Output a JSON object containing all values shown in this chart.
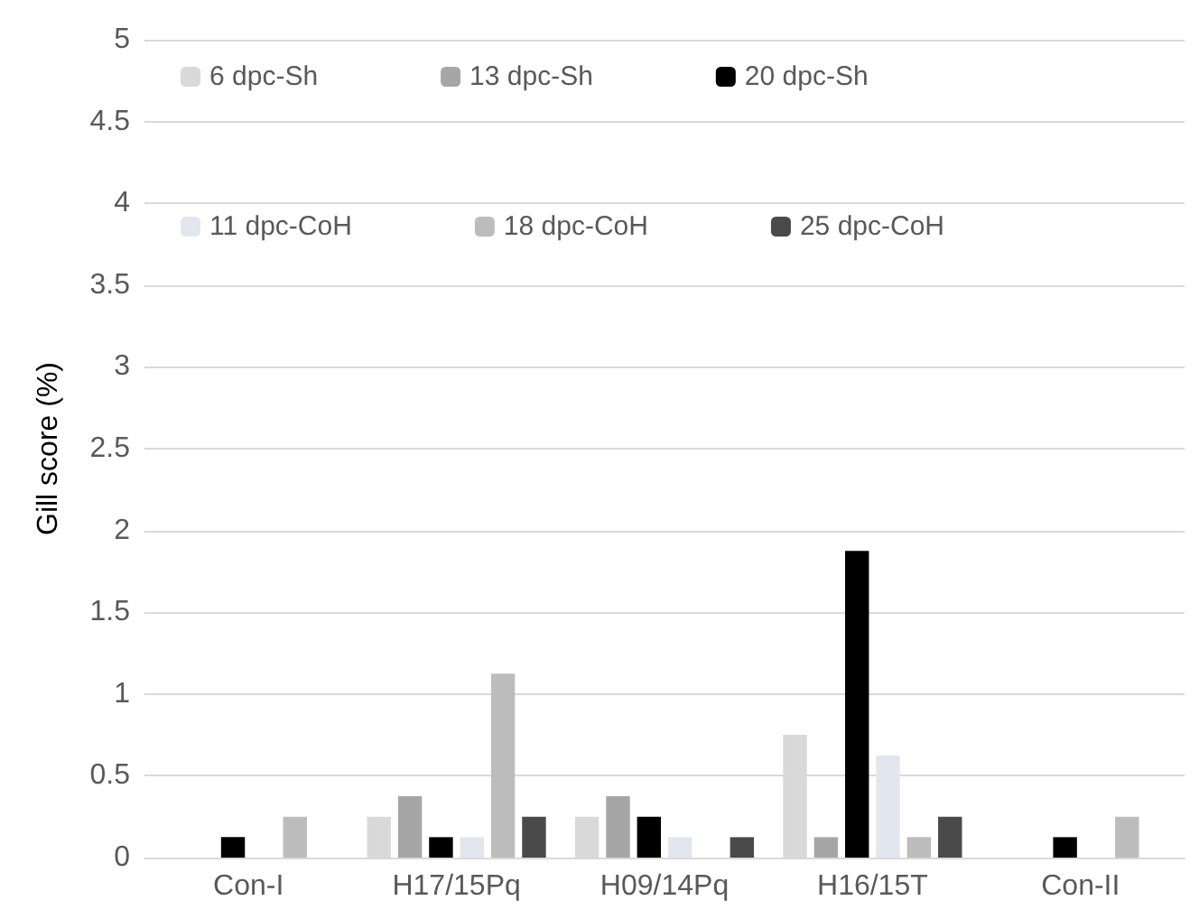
{
  "chart_data": {
    "type": "bar",
    "ylabel": "Gill score (%)",
    "categories": [
      "Con-I",
      "H17/15Pq",
      "H09/14Pq",
      "H16/15T",
      "Con-II"
    ],
    "series": [
      {
        "name": "6 dpc-Sh",
        "color": "#d9d9d9",
        "values": [
          null,
          0.25,
          0.25,
          0.75,
          null
        ]
      },
      {
        "name": "13 dpc-Sh",
        "color": "#a6a6a6",
        "values": [
          null,
          0.375,
          0.375,
          0.125,
          null
        ]
      },
      {
        "name": "20 dpc-Sh",
        "color": "#000000",
        "values": [
          0.125,
          0.125,
          0.25,
          1.875,
          0.125
        ]
      },
      {
        "name": "11 dpc-CoH",
        "color": "#e2e7ef",
        "values": [
          null,
          0.125,
          0.125,
          0.625,
          null
        ]
      },
      {
        "name": "18 dpc-CoH",
        "color": "#bcbcbc",
        "values": [
          0.25,
          1.125,
          null,
          0.125,
          0.25
        ]
      },
      {
        "name": "25 dpc-CoH",
        "color": "#4a4a4a",
        "values": [
          null,
          0.25,
          0.125,
          0.25,
          null
        ]
      }
    ],
    "ylim": [
      0,
      5
    ],
    "yticks": [
      0,
      0.5,
      1,
      1.5,
      2,
      2.5,
      3,
      3.5,
      4,
      4.5,
      5
    ],
    "grid": "y",
    "legend": "top"
  }
}
